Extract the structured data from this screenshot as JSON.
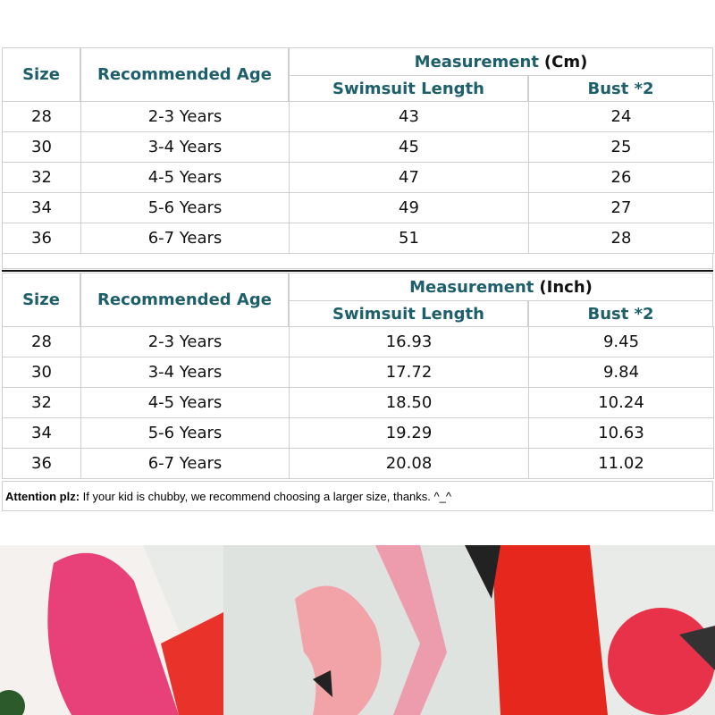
{
  "tables": [
    {
      "header": {
        "size": "Size",
        "age": "Recommended Age",
        "measurement": "Measurement",
        "unit": "(Cm)",
        "length": "Swimsuit Length",
        "bust": "Bust *2"
      },
      "rows": [
        [
          "28",
          "2-3 Years",
          "43",
          "24"
        ],
        [
          "30",
          "3-4 Years",
          "45",
          "25"
        ],
        [
          "32",
          "4-5 Years",
          "47",
          "26"
        ],
        [
          "34",
          "5-6 Years",
          "49",
          "27"
        ],
        [
          "36",
          "6-7 Years",
          "51",
          "28"
        ]
      ]
    },
    {
      "header": {
        "size": "Size",
        "age": "Recommended Age",
        "measurement": "Measurement",
        "unit": "(Inch)",
        "length": "Swimsuit Length",
        "bust": "Bust *2"
      },
      "rows": [
        [
          "28",
          "2-3 Years",
          "16.93",
          "9.45"
        ],
        [
          "30",
          "3-4 Years",
          "17.72",
          "9.84"
        ],
        [
          "32",
          "4-5 Years",
          "18.50",
          "10.24"
        ],
        [
          "34",
          "5-6 Years",
          "19.29",
          "10.63"
        ],
        [
          "36",
          "6-7 Years",
          "20.08",
          "11.02"
        ]
      ]
    }
  ],
  "note": {
    "label": "Attention plz:",
    "text": "If your kid is chubby, we recommend choosing a larger size, thanks. ^_^"
  }
}
